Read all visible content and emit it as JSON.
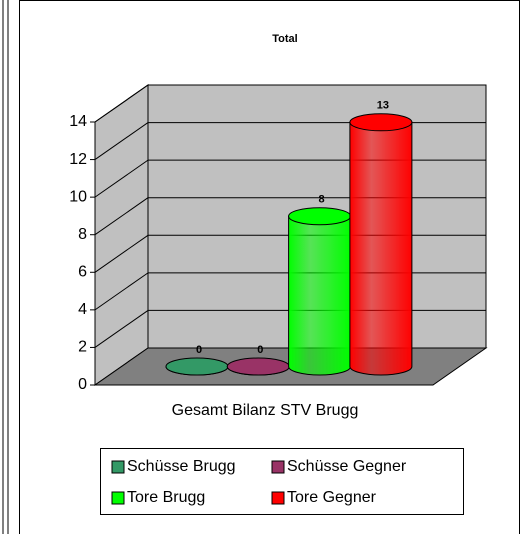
{
  "chart_data": {
    "type": "bar3d",
    "title": "Total",
    "categories": [
      "Gesamt Bilanz STV Brugg"
    ],
    "series": [
      {
        "name": "Schüsse Brugg",
        "color": "#339966",
        "values": [
          0
        ]
      },
      {
        "name": "Schüsse Gegner",
        "color": "#993366",
        "values": [
          0
        ]
      },
      {
        "name": "Tore Brugg",
        "color": "#00ff00",
        "values": [
          8
        ]
      },
      {
        "name": "Tore Gegner",
        "color": "#ff0000",
        "values": [
          13
        ]
      }
    ],
    "ylim": [
      0,
      14
    ],
    "yticks": [
      0,
      2,
      4,
      6,
      8,
      10,
      12,
      14
    ],
    "grid": true
  }
}
